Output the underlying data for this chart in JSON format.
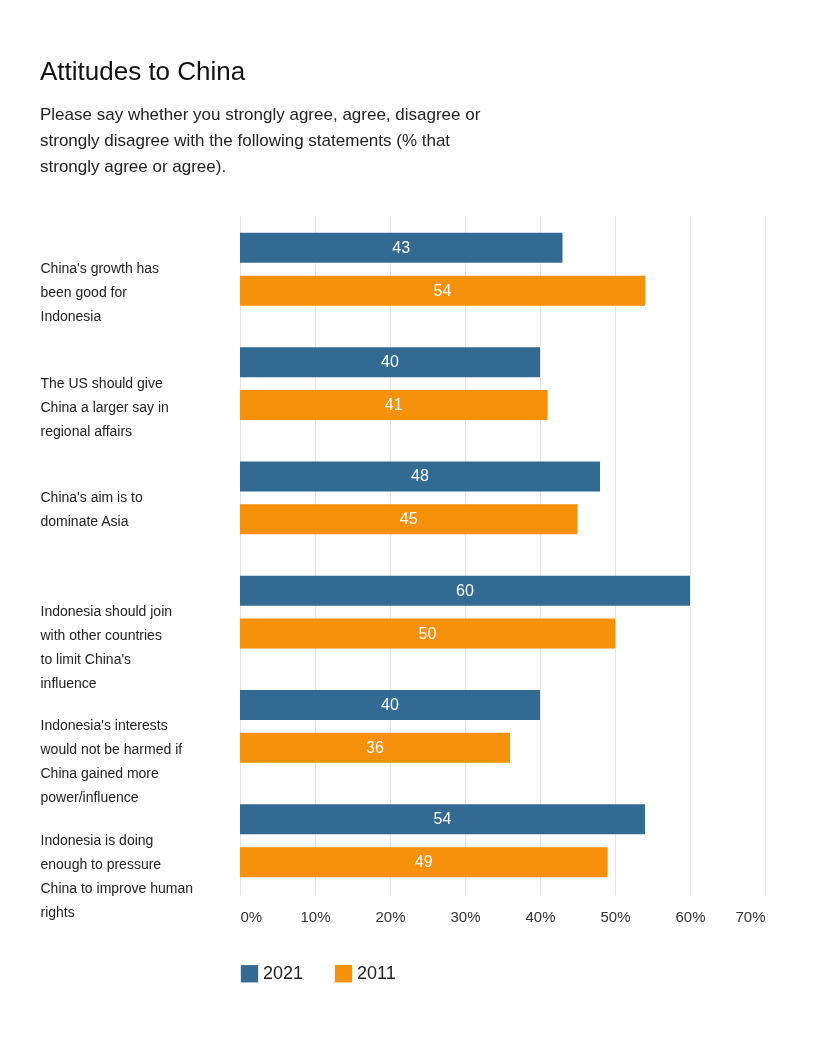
{
  "chart_data": {
    "type": "bar",
    "orientation": "horizontal",
    "title": "Attitudes to China",
    "subtitle": "Please say whether you strongly agree, agree, disagree or strongly disagree with the following statements (% that strongly agree or agree).",
    "categories": [
      "China's growth has been good for Indonesia",
      "The US should give China a larger say in regional affairs",
      "China's aim is to dominate Asia",
      "Indonesia should join with other countries to limit China's influence",
      "Indonesia's interests would not be harmed if China gained more power/influence",
      "Indonesia is doing enough to pressure China to improve human rights"
    ],
    "series": [
      {
        "name": "2021",
        "color": "#336a94",
        "values": [
          43,
          40,
          48,
          60,
          40,
          54
        ]
      },
      {
        "name": "2011",
        "color": "#f7900b",
        "values": [
          54,
          41,
          45,
          50,
          36,
          49
        ]
      }
    ],
    "xlim": [
      0,
      70
    ],
    "xticks": [
      {
        "value": 0,
        "label": "0%"
      },
      {
        "value": 10,
        "label": "10%"
      },
      {
        "value": 20,
        "label": "20%"
      },
      {
        "value": 30,
        "label": "30%"
      },
      {
        "value": 40,
        "label": "40%"
      },
      {
        "value": 50,
        "label": "50%"
      },
      {
        "value": 60,
        "label": "60%"
      },
      {
        "value": 70,
        "label": "70%"
      }
    ],
    "grid": "x",
    "legend": "bottom",
    "data_labels": true
  }
}
